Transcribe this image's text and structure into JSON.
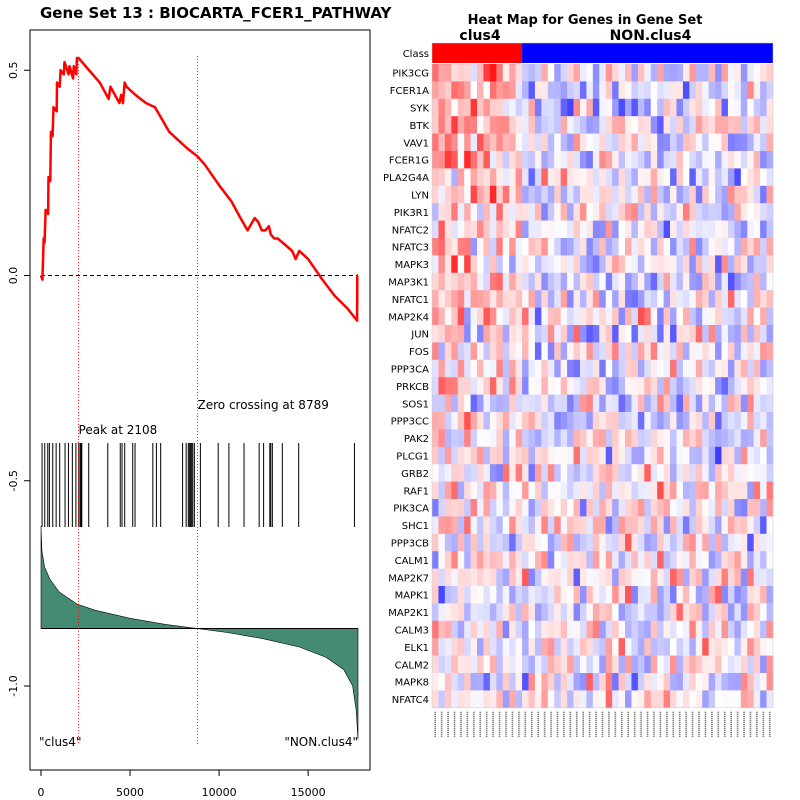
{
  "chart_data": [
    {
      "type": "line",
      "title": "Gene Set  13 : BIOCARTA_FCER1_PATHWAY",
      "xlim": [
        0,
        17800
      ],
      "ylim": [
        -1.15,
        0.58
      ],
      "x_ticks": [
        0,
        5000,
        10000,
        15000
      ],
      "x_tick_labels": [
        "0",
        "5000",
        "10000",
        "15000"
      ],
      "y_ticks": [
        0.5,
        0.0,
        -0.5,
        -1.0
      ],
      "y_tick_labels": [
        "0.5",
        "0.0",
        "-0.5",
        "-1.0"
      ],
      "enrichment_curve": {
        "x": [
          0,
          80,
          150,
          200,
          260,
          400,
          420,
          520,
          560,
          650,
          700,
          880,
          900,
          1050,
          1100,
          1280,
          1320,
          1550,
          1600,
          1800,
          1840,
          1980,
          2020,
          2108,
          2700,
          3300,
          3800,
          3900,
          4400,
          4500,
          4600,
          4700,
          4800,
          5300,
          5900,
          6400,
          6800,
          7200,
          7700,
          8200,
          8500,
          8789,
          9200,
          10000,
          10700,
          11200,
          11600,
          12000,
          12200,
          12400,
          12600,
          12800,
          12900,
          13100,
          13300,
          14100,
          14300,
          14500,
          15000,
          15800,
          16500,
          17200,
          17750,
          17760,
          17800
        ],
        "y": [
          0.0,
          -0.01,
          0.09,
          0.08,
          0.16,
          0.15,
          0.24,
          0.23,
          0.35,
          0.34,
          0.41,
          0.4,
          0.47,
          0.46,
          0.5,
          0.49,
          0.52,
          0.49,
          0.51,
          0.48,
          0.51,
          0.49,
          0.53,
          0.53,
          0.5,
          0.47,
          0.43,
          0.46,
          0.42,
          0.44,
          0.42,
          0.47,
          0.46,
          0.44,
          0.42,
          0.41,
          0.38,
          0.35,
          0.33,
          0.31,
          0.3,
          0.29,
          0.27,
          0.22,
          0.18,
          0.14,
          0.11,
          0.14,
          0.13,
          0.11,
          0.11,
          0.12,
          0.1,
          0.09,
          0.09,
          0.06,
          0.04,
          0.06,
          0.04,
          -0.01,
          -0.05,
          -0.08,
          -0.11,
          0.0,
          0.0
        ]
      },
      "baseline": 0.0,
      "peak": {
        "x": 2108,
        "label": "Peak at 2108"
      },
      "zero_crossing": {
        "x": 8789,
        "label": "Zero crossing at 8789"
      },
      "hit_positions": [
        60,
        210,
        380,
        470,
        660,
        850,
        1050,
        1350,
        1540,
        1760,
        1960,
        2120,
        2200,
        2250,
        2290,
        2680,
        3750,
        4450,
        4550,
        4700,
        5150,
        5280,
        6280,
        6480,
        6720,
        7950,
        8150,
        8270,
        8330,
        8400,
        8460,
        8520,
        8610,
        8950,
        9950,
        10550,
        11400,
        12250,
        12500,
        12850,
        12900,
        12990,
        13550,
        14470,
        17600
      ],
      "ranked_metric": {
        "x": [
          0,
          50,
          200,
          500,
          1000,
          2000,
          3000,
          5000,
          7000,
          8789,
          10500,
          12500,
          14500,
          16000,
          17000,
          17500,
          17700,
          17800
        ],
        "y": [
          -0.61,
          -0.67,
          -0.71,
          -0.74,
          -0.77,
          -0.8,
          -0.815,
          -0.835,
          -0.85,
          -0.86,
          -0.87,
          -0.885,
          -0.905,
          -0.93,
          -0.96,
          -1.0,
          -1.06,
          -1.13
        ],
        "baseline": -0.86
      },
      "left_label": "\"clus4\"",
      "right_label": "\"NON.clus4\""
    },
    {
      "type": "heatmap",
      "title": "Heat Map for Genes in Gene Set",
      "class_label": "Class",
      "groups": [
        {
          "name": "clus4",
          "count": 14,
          "color": "#ff0000"
        },
        {
          "name": "NON.clus4",
          "count": 39,
          "color": "#0000ff"
        }
      ],
      "genes": [
        "PIK3CG",
        "FCER1A",
        "SYK",
        "BTK",
        "VAV1",
        "FCER1G",
        "PLA2G4A",
        "LYN",
        "PIK3R1",
        "NFATC2",
        "NFATC3",
        "MAPK3",
        "MAP3K1",
        "NFATC1",
        "MAP2K4",
        "JUN",
        "FOS",
        "PPP3CA",
        "PRKCB",
        "SOS1",
        "PPP3CC",
        "PAK2",
        "PLCG1",
        "GRB2",
        "RAF1",
        "PIK3CA",
        "SHC1",
        "PPP3CB",
        "CALM1",
        "MAP2K7",
        "MAPK1",
        "MAP2K1",
        "CALM3",
        "ELK1",
        "CALM2",
        "MAPK8",
        "NFATC4"
      ],
      "value_range": [
        -3,
        3
      ],
      "color_low": "#0000ff",
      "color_mid": "#ffffff",
      "color_high": "#ff0000"
    }
  ]
}
